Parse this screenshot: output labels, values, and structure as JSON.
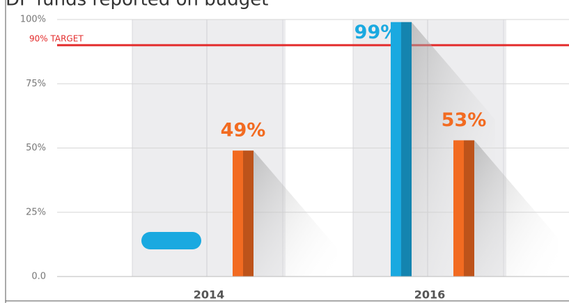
{
  "chart_data": {
    "type": "bar",
    "title": "DP funds reported on budget",
    "categories": [
      "2014",
      "2016"
    ],
    "series": [
      {
        "color": "#1aa9e0",
        "values": [
          null,
          99
        ],
        "value_labels": [
          null,
          "99%"
        ]
      },
      {
        "color": "#f26b21",
        "values": [
          49,
          53
        ],
        "value_labels": [
          "49%",
          "53%"
        ]
      }
    ],
    "ylim": [
      0,
      100
    ],
    "yticks": [
      {
        "value": 0,
        "label": "0.0"
      },
      {
        "value": 25,
        "label": "25%"
      },
      {
        "value": 50,
        "label": "50%"
      },
      {
        "value": 75,
        "label": "75%"
      },
      {
        "value": 100,
        "label": "100%"
      }
    ],
    "grid": true,
    "target": {
      "value": 90,
      "label": "90% TARGET",
      "color": "#e32b2b"
    }
  }
}
